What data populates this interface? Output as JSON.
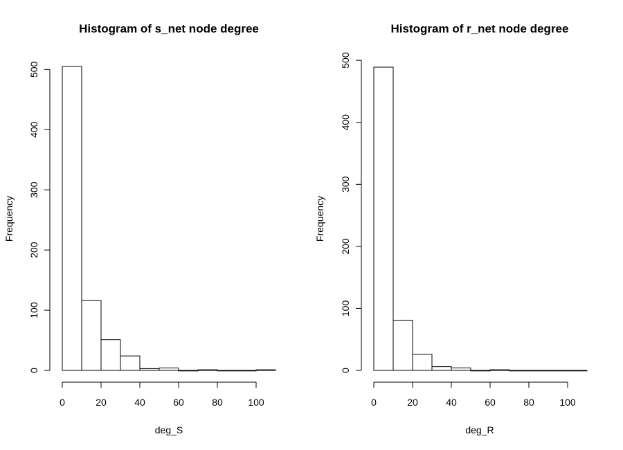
{
  "chart_data": [
    {
      "type": "bar",
      "title": "Histogram of s_net node degree",
      "xlabel": "deg_S",
      "ylabel": "Frequency",
      "bin_edges": [
        0,
        10,
        20,
        30,
        40,
        50,
        60,
        70,
        80,
        90,
        100,
        110
      ],
      "values": [
        505,
        116,
        51,
        24,
        3,
        4,
        0,
        1,
        0,
        0,
        1
      ],
      "xlim": [
        0,
        110
      ],
      "ylim": [
        0,
        505
      ],
      "x_ticks": [
        0,
        20,
        40,
        60,
        80,
        100
      ],
      "x_tick_labels": [
        "0",
        "20",
        "40",
        "60",
        "80",
        "100"
      ],
      "y_ticks": [
        0,
        100,
        200,
        300,
        400,
        500
      ],
      "y_tick_labels": [
        "0",
        "100",
        "200",
        "300",
        "400",
        "500"
      ],
      "grid": false,
      "legend": "none"
    },
    {
      "type": "bar",
      "title": "Histogram of r_net node degree",
      "xlabel": "deg_R",
      "ylabel": "Frequency",
      "bin_edges": [
        0,
        10,
        20,
        30,
        40,
        50,
        60,
        70,
        80,
        90,
        100,
        110
      ],
      "values": [
        489,
        81,
        26,
        6,
        4,
        0,
        1,
        0,
        0,
        0,
        0
      ],
      "xlim": [
        0,
        110
      ],
      "ylim": [
        0,
        489
      ],
      "x_ticks": [
        0,
        20,
        40,
        60,
        80,
        100
      ],
      "x_tick_labels": [
        "0",
        "20",
        "40",
        "60",
        "80",
        "100"
      ],
      "y_ticks": [
        0,
        100,
        200,
        300,
        400,
        500
      ],
      "y_tick_labels": [
        "0",
        "100",
        "200",
        "300",
        "400",
        "500"
      ],
      "grid": false,
      "legend": "none"
    }
  ]
}
